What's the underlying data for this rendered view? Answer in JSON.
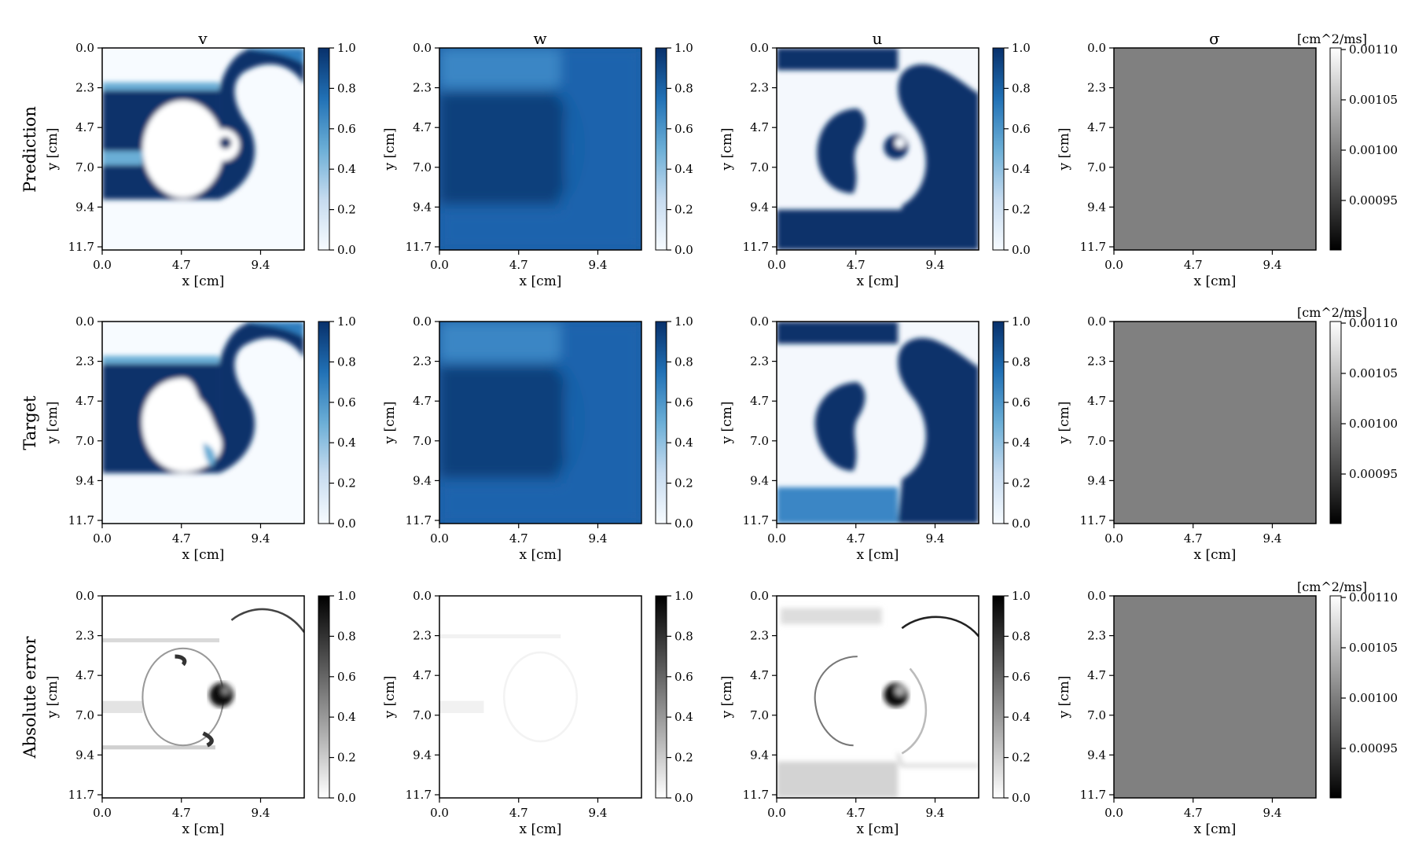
{
  "chart_data": {
    "type": "heatmap",
    "rows": [
      "Prediction",
      "Target",
      "Absolute error"
    ],
    "columns": [
      {
        "title": "v",
        "colormap": "blues",
        "cbar_ticks": [
          "1.0",
          "0.8",
          "0.6",
          "0.4",
          "0.2",
          "0.0"
        ],
        "cbar_unit": ""
      },
      {
        "title": "w",
        "colormap": "blues",
        "cbar_ticks": [
          "1.0",
          "0.8",
          "0.6",
          "0.4",
          "0.2",
          "0.0"
        ],
        "cbar_unit": ""
      },
      {
        "title": "u",
        "colormap": "blues",
        "cbar_ticks": [
          "1.0",
          "0.8",
          "0.6",
          "0.4",
          "0.2",
          "0.0"
        ],
        "cbar_unit": ""
      },
      {
        "title": "σ",
        "colormap": "gray",
        "cbar_ticks": [
          "0.00110",
          "0.00105",
          "0.00100",
          "0.00095"
        ],
        "cbar_unit": "[cm^2/ms]"
      }
    ],
    "error_colormap": "gray_r",
    "xlabel": "x [cm]",
    "ylabel": "y [cm]",
    "x_ticks": [
      "0.0",
      "4.7",
      "9.4"
    ],
    "y_ticks": [
      "0.0",
      "2.3",
      "4.7",
      "7.0",
      "9.4",
      "11.7"
    ],
    "colors": {
      "blue_dark": "#08306b",
      "blue_mid": "#2f7dbd",
      "blue_light": "#f7fbff",
      "sigma_gray": "#808080"
    }
  }
}
